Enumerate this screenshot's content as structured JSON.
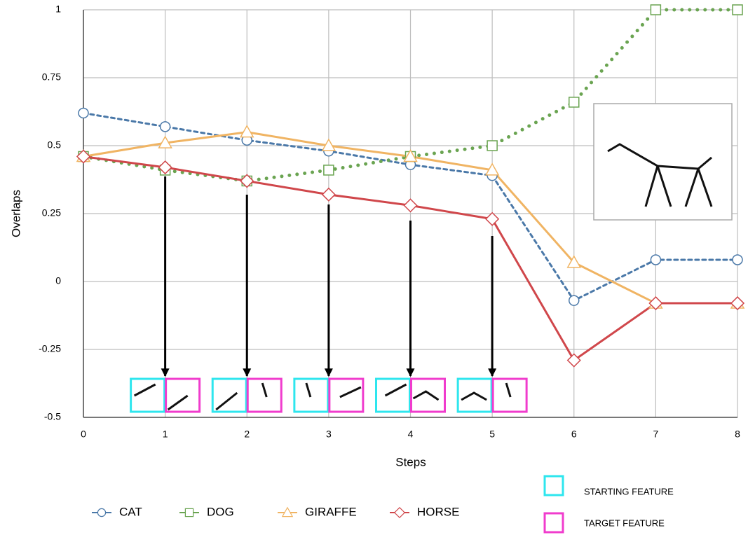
{
  "chart_data": {
    "type": "line",
    "xlabel": "Steps",
    "ylabel": "Overlaps",
    "x": [
      0,
      1,
      2,
      3,
      4,
      5,
      6,
      7,
      8
    ],
    "xlim": [
      0,
      8
    ],
    "xticks": [
      0,
      1,
      2,
      3,
      4,
      5,
      6,
      7,
      8
    ],
    "ylim": [
      -0.5,
      1
    ],
    "yticks": [
      -0.5,
      -0.25,
      0,
      0.25,
      0.5,
      0.75,
      1
    ],
    "grid": true,
    "series": [
      {
        "name": "CAT",
        "color": "#4a78a8",
        "marker": "circle",
        "style": "dashed",
        "values": [
          0.62,
          0.57,
          0.52,
          0.48,
          0.43,
          0.39,
          -0.07,
          0.08,
          0.08
        ]
      },
      {
        "name": "DOG",
        "color": "#6aa451",
        "marker": "square",
        "style": "dotted",
        "values": [
          0.46,
          0.41,
          0.37,
          0.41,
          0.46,
          0.5,
          0.66,
          1,
          1
        ]
      },
      {
        "name": "GIRAFFE",
        "color": "#f0b463",
        "marker": "triangle",
        "style": "solid",
        "values": [
          0.46,
          0.51,
          0.55,
          0.5,
          0.46,
          0.41,
          0.07,
          -0.08,
          -0.08
        ]
      },
      {
        "name": "HORSE",
        "color": "#d0474b",
        "marker": "diamond",
        "style": "solid",
        "values": [
          0.46,
          0.42,
          0.37,
          0.32,
          0.28,
          0.23,
          -0.29,
          -0.08,
          -0.08
        ]
      }
    ],
    "feature_key": {
      "starting": "STARTING FEATURE",
      "target": "TARGET FEATURE"
    }
  }
}
